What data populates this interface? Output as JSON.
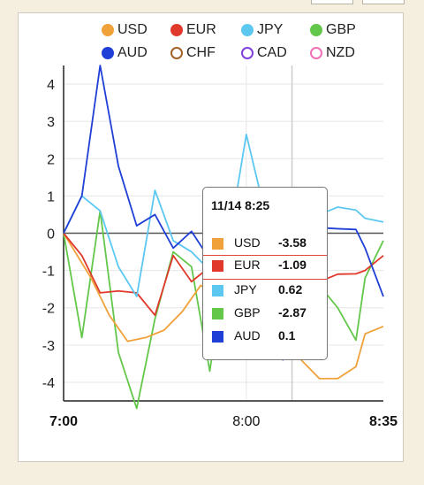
{
  "colors": {
    "USD": "#f0a13a",
    "EUR": "#e0392b",
    "JPY": "#5cc8f2",
    "GBP": "#63c84a",
    "AUD": "#1f3fd6",
    "CHF": "#a0612a",
    "CAD": "#7f3fdc",
    "NZD": "#f070b8",
    "axis": "#222222",
    "grid": "#e6e6e6",
    "background": "#f5efdf"
  },
  "legend": [
    {
      "label": "USD",
      "filled": true
    },
    {
      "label": "EUR",
      "filled": true
    },
    {
      "label": "JPY",
      "filled": true
    },
    {
      "label": "GBP",
      "filled": true
    },
    {
      "label": "AUD",
      "filled": true
    },
    {
      "label": "CHF",
      "filled": false
    },
    {
      "label": "CAD",
      "filled": false
    },
    {
      "label": "NZD",
      "filled": false
    }
  ],
  "tooltip": {
    "title": "11/14 8:25",
    "rows": [
      {
        "label": "USD",
        "value": "-3.58"
      },
      {
        "label": "EUR",
        "value": "-1.09"
      },
      {
        "label": "JPY",
        "value": "0.62"
      },
      {
        "label": "GBP",
        "value": "-2.87"
      },
      {
        "label": "AUD",
        "value": "0.1"
      }
    ]
  },
  "chart_data": {
    "type": "line",
    "xlabel": "",
    "ylabel": "",
    "x_ticks": [
      "7:00",
      "8:00",
      "8:35"
    ],
    "y_ticks": [
      4,
      3,
      2,
      1,
      0,
      -1,
      -2,
      -3,
      -4
    ],
    "xlim": [
      0,
      35
    ],
    "ylim": [
      -4.5,
      4.5
    ],
    "grid": true,
    "legend_position": "top",
    "crosshair_x": 25,
    "series": [
      {
        "name": "USD",
        "x": [
          0,
          3,
          5,
          7,
          9,
          11,
          13,
          15,
          17,
          18,
          20,
          22,
          24,
          25,
          26,
          28,
          30,
          32,
          33,
          35
        ],
        "y": [
          0,
          -1.2,
          -2.2,
          -2.9,
          -2.8,
          -2.6,
          -2.1,
          -1.4,
          -1.7,
          -2.0,
          -2.4,
          -2.7,
          -2.9,
          -3.1,
          -3.4,
          -3.9,
          -3.9,
          -3.58,
          -2.7,
          -2.5
        ]
      },
      {
        "name": "EUR",
        "x": [
          0,
          2,
          4,
          6,
          8,
          10,
          12,
          14,
          16,
          18,
          20,
          22,
          24,
          26,
          28,
          30,
          32,
          33,
          35
        ],
        "y": [
          0,
          -0.6,
          -1.6,
          -1.55,
          -1.6,
          -2.2,
          -0.6,
          -1.3,
          -0.9,
          -0.2,
          -0.4,
          -0.6,
          -0.3,
          -1.0,
          -1.3,
          -1.1,
          -1.09,
          -1.0,
          -0.6
        ]
      },
      {
        "name": "JPY",
        "x": [
          0,
          2,
          4,
          6,
          8,
          10,
          12,
          14,
          16,
          18,
          20,
          22,
          24,
          26,
          28,
          30,
          32,
          33,
          35
        ],
        "y": [
          0,
          1.0,
          0.6,
          -0.9,
          -1.7,
          1.15,
          -0.2,
          -0.5,
          -1.0,
          -0.3,
          2.65,
          0.6,
          0.2,
          0.3,
          0.5,
          0.7,
          0.62,
          0.4,
          0.3
        ]
      },
      {
        "name": "GBP",
        "x": [
          0,
          2,
          4,
          6,
          8,
          10,
          12,
          14,
          16,
          18,
          20,
          22,
          24,
          26,
          28,
          30,
          32,
          33,
          35
        ],
        "y": [
          0,
          -2.8,
          0.6,
          -3.2,
          -4.7,
          -2.3,
          -0.5,
          -0.9,
          -3.7,
          -0.4,
          -0.6,
          -1.0,
          -1.6,
          -1.2,
          -1.4,
          -2.0,
          -2.87,
          -1.2,
          -0.2
        ]
      },
      {
        "name": "AUD",
        "x": [
          0,
          2,
          4,
          6,
          8,
          10,
          12,
          14,
          16,
          18,
          20,
          22,
          24,
          26,
          28,
          30,
          32,
          33,
          35
        ],
        "y": [
          0,
          1.0,
          4.5,
          1.8,
          0.2,
          0.5,
          -0.4,
          0.05,
          -0.7,
          0.1,
          0.3,
          -0.8,
          -3.4,
          0.7,
          0.15,
          0.12,
          0.1,
          -0.4,
          -1.7
        ]
      }
    ]
  }
}
